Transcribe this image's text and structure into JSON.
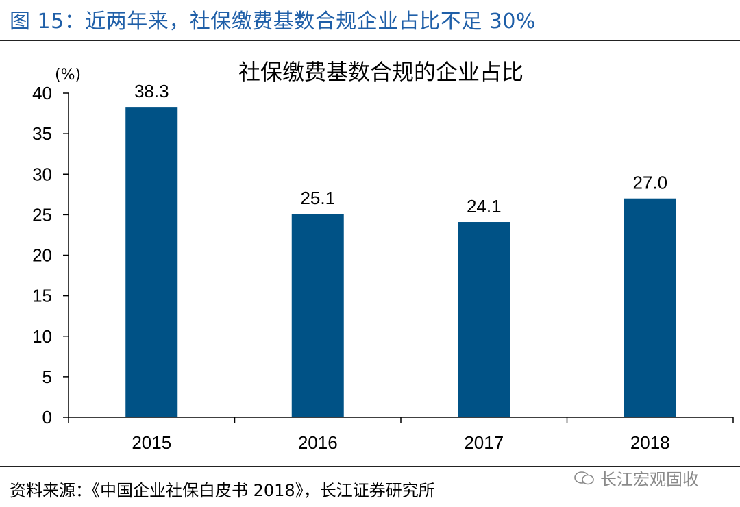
{
  "figure": {
    "title": "图 15：近两年来，社保缴费基数合规企业占比不足 30%",
    "source": "资料来源：《中国企业社保白皮书 2018》，长江证券研究所",
    "watermark": "长江宏观固收",
    "title_color": "#1f5fa8"
  },
  "chart_data": {
    "type": "bar",
    "title": "社保缴费基数合规的企业占比",
    "ylabel": "(%)",
    "xlabel": "",
    "categories": [
      "2015",
      "2016",
      "2017",
      "2018"
    ],
    "values": [
      38.3,
      25.1,
      24.1,
      27.0
    ],
    "value_labels": [
      "38.3",
      "25.1",
      "24.1",
      "27.0"
    ],
    "ylim": [
      0,
      40
    ],
    "yticks": [
      "0",
      "5",
      "10",
      "15",
      "20",
      "25",
      "30",
      "35",
      "40"
    ],
    "grid": false,
    "legend": "none",
    "bar_color": "#005286"
  }
}
